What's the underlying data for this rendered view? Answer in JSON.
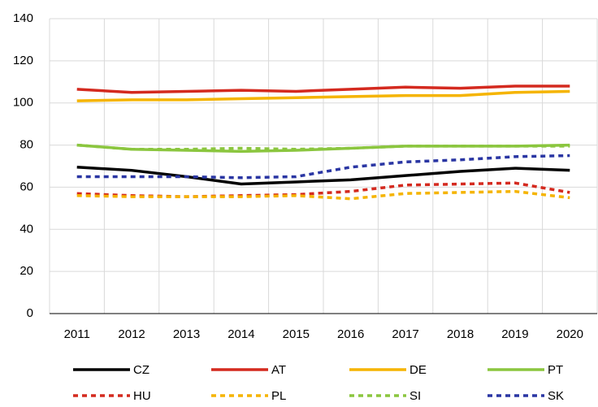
{
  "chart_data": {
    "type": "line",
    "categories": [
      "2011",
      "2012",
      "2013",
      "2014",
      "2015",
      "2016",
      "2017",
      "2018",
      "2019",
      "2020"
    ],
    "ylim": [
      0,
      140
    ],
    "yticks": [
      0,
      20,
      40,
      60,
      80,
      100,
      120,
      140
    ],
    "grid": true,
    "series": [
      {
        "name": "CZ",
        "color": "#000000",
        "dashed": false,
        "values": [
          69.5,
          68,
          65,
          61.5,
          62.5,
          63.5,
          65.5,
          67.5,
          69,
          68
        ]
      },
      {
        "name": "AT",
        "color": "#d42a1f",
        "dashed": false,
        "values": [
          106.5,
          105,
          105.5,
          106,
          105.5,
          106.5,
          107.5,
          107,
          108,
          108
        ]
      },
      {
        "name": "DE",
        "color": "#f5b400",
        "dashed": false,
        "values": [
          101,
          101.5,
          101.5,
          102,
          102.5,
          103,
          103.5,
          103.5,
          105,
          105.5
        ]
      },
      {
        "name": "PT",
        "color": "#8bc63f",
        "dashed": false,
        "values": [
          80,
          78,
          77.5,
          77,
          77.5,
          78.5,
          79.5,
          79.5,
          79.5,
          80
        ]
      },
      {
        "name": "HU",
        "color": "#d42a1f",
        "dashed": true,
        "values": [
          57,
          56,
          55.5,
          56,
          56.5,
          58,
          61,
          61.5,
          62,
          57.5
        ]
      },
      {
        "name": "PL",
        "color": "#f5b400",
        "dashed": true,
        "values": [
          56,
          55.5,
          55.5,
          55.5,
          56,
          54.5,
          57,
          57.5,
          58,
          55
        ]
      },
      {
        "name": "SI",
        "color": "#8bc63f",
        "dashed": true,
        "values": [
          80,
          78,
          78,
          78.5,
          78,
          78.5,
          79.5,
          79.5,
          79.5,
          79.5
        ]
      },
      {
        "name": "SK",
        "color": "#2a36a3",
        "dashed": true,
        "values": [
          65,
          65,
          65,
          64.5,
          65,
          69.5,
          72,
          73,
          74.5,
          75
        ]
      }
    ]
  }
}
